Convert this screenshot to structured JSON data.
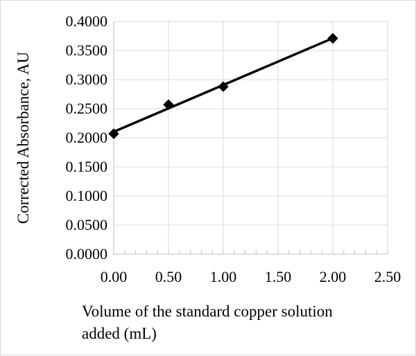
{
  "chart_data": {
    "type": "scatter",
    "title": "",
    "xlabel_lines": [
      "Volume of the standard copper solution",
      "added (mL)"
    ],
    "ylabel": "Corrected Absorbance, AU",
    "x": [
      0.0,
      0.5,
      1.0,
      2.0
    ],
    "y": [
      0.207,
      0.257,
      0.288,
      0.371
    ],
    "trendline": {
      "type": "linear",
      "from_x": 0.0,
      "to_x": 2.0
    },
    "xlim": [
      0.0,
      2.5
    ],
    "ylim": [
      0.0,
      0.4
    ],
    "xticks": [
      "0.00",
      "0.50",
      "1.00",
      "1.50",
      "2.00",
      "2.50"
    ],
    "yticks": [
      "0.0000",
      "0.0500",
      "0.1000",
      "0.1500",
      "0.2000",
      "0.2500",
      "0.3000",
      "0.3500",
      "0.4000"
    ],
    "grid": true,
    "legend": "none",
    "marker": "diamond",
    "colors": {
      "series": "#000000",
      "grid": "#d9d9d9",
      "axis": "#bfbfbf"
    }
  }
}
